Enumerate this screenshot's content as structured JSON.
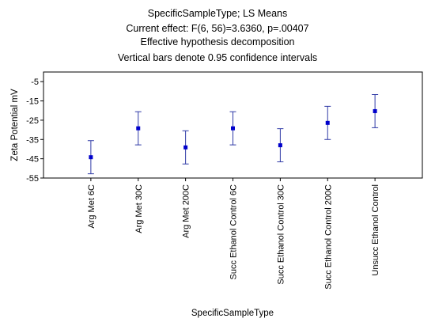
{
  "chart_data": {
    "type": "scatter",
    "title_lines": [
      "SpecificSampleType; LS Means",
      "Current effect: F(6, 56)=3.6360, p=.00407",
      "Effective hypothesis decomposition",
      "Vertical bars denote 0.95 confidence intervals"
    ],
    "xlabel": "SpecificSampleType",
    "ylabel": "Zeta Potential mV",
    "ylim": [
      -55,
      0
    ],
    "yticks": [
      "-5",
      "-15",
      "-25",
      "-35",
      "-45",
      "-55"
    ],
    "ytick_values": [
      -5,
      -15,
      -25,
      -35,
      -45,
      -55
    ],
    "categories": [
      "Arg Met 6C",
      "Arg Met 30C",
      "Arg Met 200C",
      "Succ Ethanol Control 6C",
      "Succ Ethanol Control 30C",
      "Succ Ethanol Control 200C",
      "Unsucc Ethanol Control"
    ],
    "means": [
      -44.2,
      -29.2,
      -39.1,
      -29.2,
      -38.0,
      -26.4,
      -20.3
    ],
    "ci_upper": [
      -35.6,
      -20.6,
      -30.5,
      -20.6,
      -29.4,
      -17.8,
      -11.7
    ],
    "ci_lower": [
      -52.8,
      -37.8,
      -47.7,
      -37.8,
      -46.6,
      -35.0,
      -28.9
    ],
    "grid": false,
    "colors": {
      "marker": "#0000cc",
      "errorbar": "#2f3aa6",
      "axis": "#000000"
    }
  }
}
